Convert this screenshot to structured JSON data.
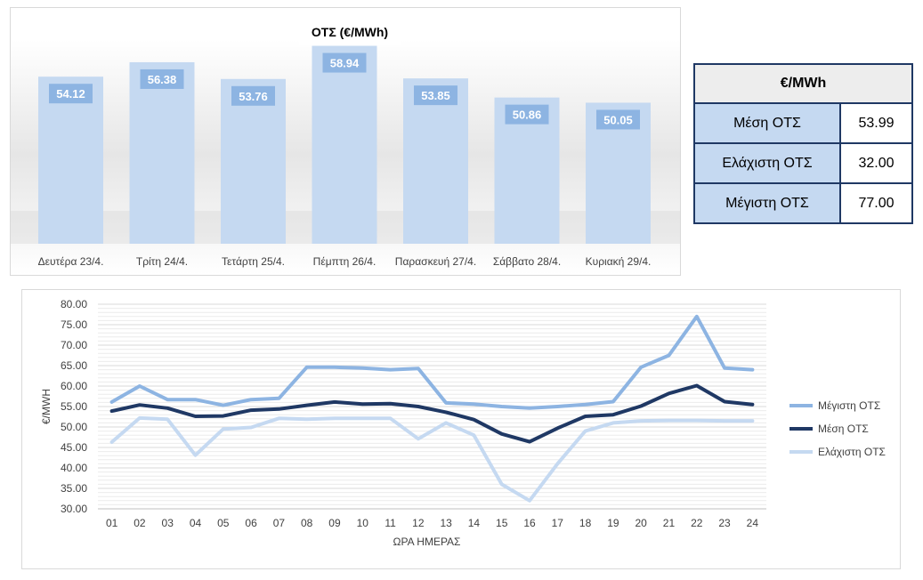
{
  "bar_chart_title": "ΟΤΣ (€/MWh)",
  "table": {
    "header": "€/MWh",
    "rows": [
      {
        "label": "Μέση ΟΤΣ",
        "value": "53.99"
      },
      {
        "label": "Ελάχιστη ΟΤΣ",
        "value": "32.00"
      },
      {
        "label": "Μέγιστη ΟΤΣ",
        "value": "77.00"
      }
    ]
  },
  "chart_data": [
    {
      "type": "bar",
      "title": "ΟΤΣ (€/MWh)",
      "categories": [
        "Δευτέρα 23/4.",
        "Τρίτη 24/4.",
        "Τετάρτη 25/4.",
        "Πέμπτη 26/4.",
        "Παρασκευή 27/4.",
        "Σάββατο 28/4.",
        "Κυριακή 29/4."
      ],
      "values": [
        54.12,
        56.38,
        53.76,
        58.94,
        53.85,
        50.86,
        50.05
      ],
      "value_labels": [
        "54.12",
        "56.38",
        "53.76",
        "58.94",
        "53.85",
        "50.86",
        "50.05"
      ],
      "colors": {
        "bar": "#c5d9f1",
        "label_bg": "#8db4e2",
        "label_text": "#ffffff"
      }
    },
    {
      "type": "line",
      "xlabel": "ΩΡΑ ΗΜΕΡΑΣ",
      "ylabel": "€/MWH",
      "x": [
        "01",
        "02",
        "03",
        "04",
        "05",
        "06",
        "07",
        "08",
        "09",
        "10",
        "11",
        "12",
        "13",
        "14",
        "15",
        "16",
        "17",
        "18",
        "19",
        "20",
        "21",
        "22",
        "23",
        "24"
      ],
      "ylim": [
        30,
        80
      ],
      "yticks": [
        "30.00",
        "35.00",
        "40.00",
        "45.00",
        "50.00",
        "55.00",
        "60.00",
        "65.00",
        "70.00",
        "75.00",
        "80.00"
      ],
      "grid": true,
      "legend": "right",
      "series": [
        {
          "name": "Μέγιστη ΟΤΣ",
          "color": "#8db4e2",
          "values": [
            56.1,
            60.0,
            56.7,
            56.7,
            55.3,
            56.7,
            57.0,
            64.6,
            64.6,
            64.4,
            64.0,
            64.3,
            55.9,
            55.6,
            55.0,
            54.6,
            55.0,
            55.5,
            56.2,
            64.6,
            67.5,
            77.0,
            64.4,
            64.0
          ]
        },
        {
          "name": "Μέση ΟΤΣ",
          "color": "#1f3864",
          "values": [
            53.9,
            55.4,
            54.6,
            52.6,
            52.7,
            54.1,
            54.4,
            55.3,
            56.1,
            55.6,
            55.7,
            55.0,
            53.6,
            51.8,
            48.3,
            46.4,
            49.7,
            52.6,
            53.0,
            55.1,
            58.2,
            60.1,
            56.2,
            55.5
          ]
        },
        {
          "name": "Ελάχιστη ΟΤΣ",
          "color": "#c5d9f1",
          "values": [
            46.3,
            52.2,
            51.9,
            43.1,
            49.5,
            49.9,
            52.1,
            51.9,
            52.1,
            52.1,
            52.1,
            47.1,
            51.0,
            48.0,
            36.0,
            32.0,
            41.0,
            49.0,
            51.0,
            51.5,
            51.6,
            51.6,
            51.5,
            51.5
          ]
        }
      ]
    }
  ]
}
